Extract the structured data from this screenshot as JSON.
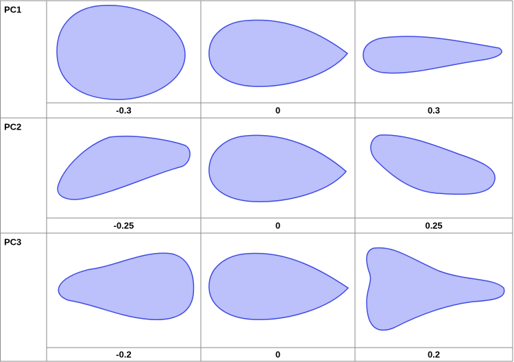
{
  "rows": [
    {
      "label": "PC1",
      "values": [
        "-0.3",
        "0",
        "0.3"
      ]
    },
    {
      "label": "PC2",
      "values": [
        "-0.25",
        "0",
        "0.25"
      ]
    },
    {
      "label": "PC3",
      "values": [
        "-0.2",
        "0",
        "0.2"
      ]
    }
  ]
}
